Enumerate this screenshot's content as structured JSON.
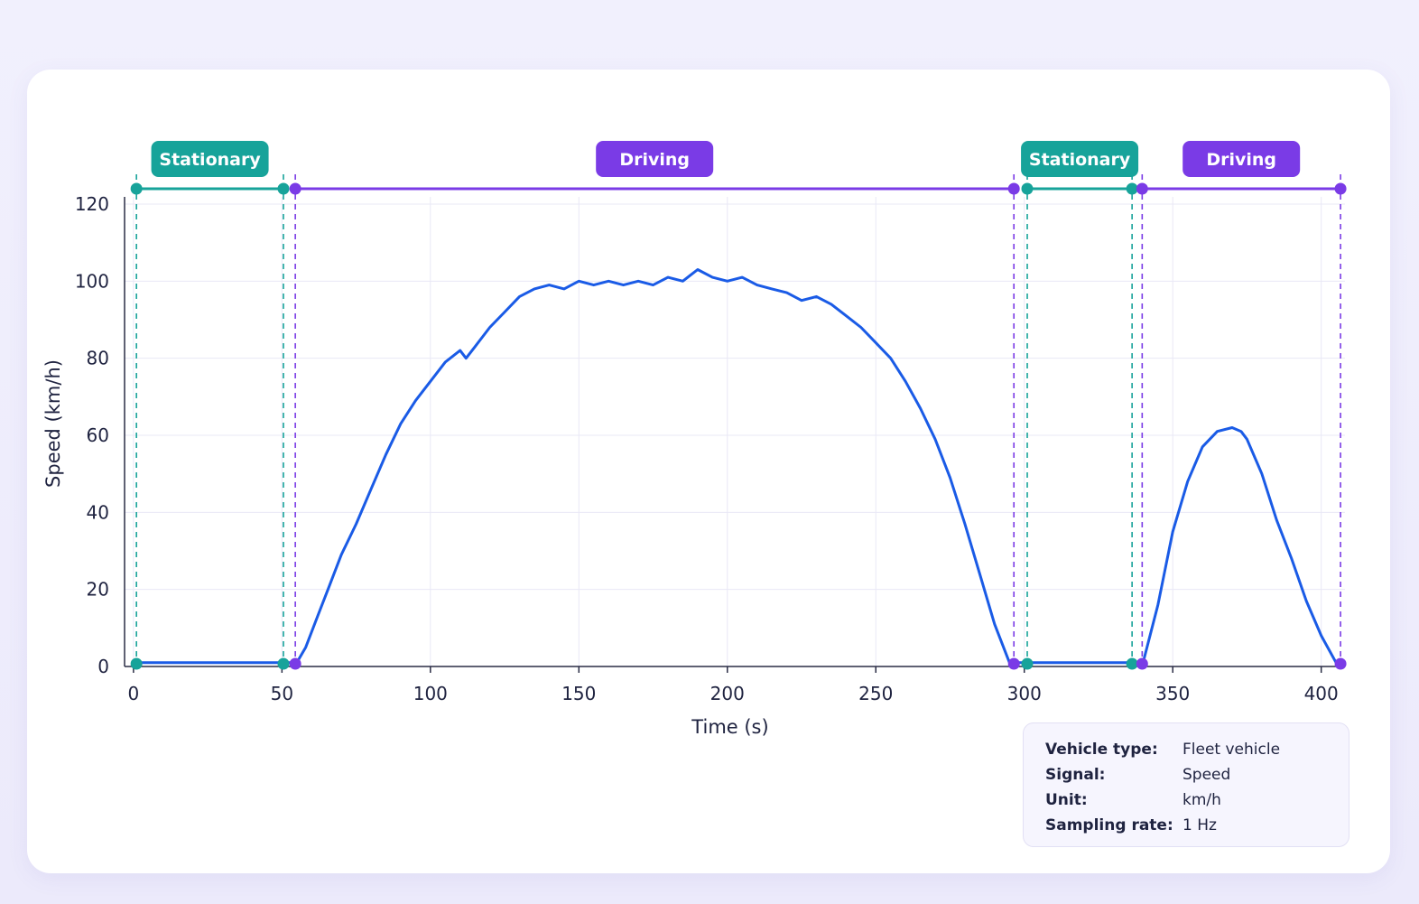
{
  "chart_data": {
    "type": "line",
    "xlabel": "Time (s)",
    "ylabel": "Speed (km/h)",
    "xlim": [
      -3,
      408
    ],
    "ylim": [
      0,
      120
    ],
    "xticks": [
      0,
      50,
      100,
      150,
      200,
      250,
      300,
      350,
      400
    ],
    "yticks": [
      0,
      20,
      40,
      60,
      80,
      100,
      120
    ],
    "grid": true,
    "series": [
      {
        "color": "#1a5be6",
        "x": [
          1,
          5,
          10,
          15,
          20,
          25,
          30,
          35,
          40,
          45,
          50,
          52,
          54,
          55,
          58,
          62,
          66,
          70,
          75,
          80,
          85,
          90,
          95,
          100,
          105,
          110,
          112,
          115,
          118,
          120,
          125,
          130,
          135,
          140,
          145,
          150,
          155,
          160,
          165,
          170,
          175,
          180,
          185,
          190,
          195,
          200,
          205,
          210,
          215,
          220,
          225,
          230,
          235,
          240,
          245,
          250,
          255,
          260,
          265,
          270,
          275,
          280,
          285,
          290,
          295,
          297,
          300,
          305,
          310,
          315,
          320,
          325,
          330,
          335,
          336,
          338,
          340,
          345,
          350,
          355,
          360,
          365,
          370,
          373,
          375,
          380,
          385,
          390,
          395,
          400,
          405
        ],
        "y": [
          1,
          1,
          1,
          1,
          1,
          1,
          1,
          1,
          1,
          1,
          1,
          1,
          1,
          1,
          5,
          13,
          21,
          29,
          37,
          46,
          55,
          63,
          69,
          74,
          79,
          82,
          80,
          83,
          86,
          88,
          92,
          96,
          98,
          99,
          98,
          100,
          99,
          100,
          99,
          100,
          99,
          101,
          100,
          103,
          101,
          100,
          101,
          99,
          98,
          97,
          95,
          96,
          94,
          91,
          88,
          84,
          80,
          74,
          67,
          59,
          49,
          37,
          24,
          11,
          1,
          1,
          1,
          1,
          1,
          1,
          1,
          1,
          1,
          1,
          1,
          1,
          1,
          16,
          35,
          48,
          57,
          61,
          62,
          61,
          59,
          50,
          38,
          28,
          17,
          8,
          1
        ]
      }
    ],
    "phases": [
      {
        "label": "Stationary",
        "start": 1,
        "end": 50.5,
        "color": "#17a39a"
      },
      {
        "label": "Driving",
        "start": 54.5,
        "end": 296.5,
        "color": "#7a3be6"
      },
      {
        "label": "Stationary",
        "start": 301,
        "end": 336.3,
        "color": "#17a39a"
      },
      {
        "label": "Driving",
        "start": 339.7,
        "end": 406.5,
        "color": "#7a3be6"
      }
    ]
  },
  "info": {
    "rows": [
      {
        "key": "Vehicle type:",
        "value": "Fleet vehicle"
      },
      {
        "key": "Signal:",
        "value": "Speed"
      },
      {
        "key": "Unit:",
        "value": "km/h"
      },
      {
        "key": "Sampling rate:",
        "value": "1 Hz"
      }
    ]
  }
}
